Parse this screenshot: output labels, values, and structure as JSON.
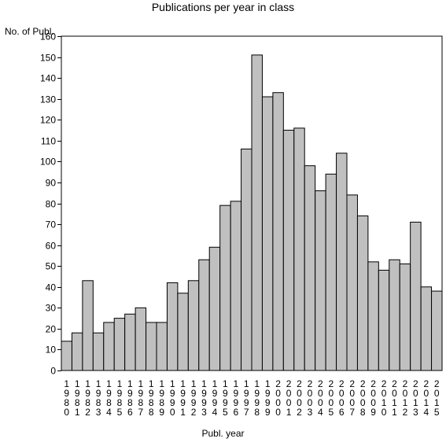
{
  "chart_data": {
    "type": "bar",
    "title": "Publications per year in class",
    "ylabel": "No. of Publ.",
    "xlabel": "Publ. year",
    "ylim": [
      0,
      160
    ],
    "yticks": [
      0,
      10,
      20,
      30,
      40,
      50,
      60,
      70,
      80,
      90,
      100,
      110,
      120,
      130,
      140,
      150,
      160
    ],
    "categories": [
      "1980",
      "1981",
      "1982",
      "1983",
      "1984",
      "1985",
      "1986",
      "1987",
      "1988",
      "1989",
      "1990",
      "1991",
      "1992",
      "1993",
      "1994",
      "1995",
      "1996",
      "1997",
      "1998",
      "1999",
      "2000",
      "2001",
      "2002",
      "2003",
      "2004",
      "2005",
      "2006",
      "2007",
      "2008",
      "2009",
      "2010",
      "2011",
      "2012",
      "2013",
      "2014",
      "2015"
    ],
    "values": [
      14,
      18,
      43,
      18,
      23,
      25,
      27,
      30,
      23,
      23,
      42,
      37,
      43,
      53,
      59,
      79,
      81,
      106,
      151,
      131,
      133,
      115,
      116,
      98,
      86,
      94,
      104,
      84,
      74,
      52,
      48,
      53,
      51,
      71,
      40,
      38
    ],
    "grid": false,
    "bar_color": "#c0c0c0",
    "edge_color": "#000000"
  }
}
